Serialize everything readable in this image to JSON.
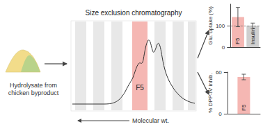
{
  "hydrolysate": {
    "label": "Hydrolysate from chicken byproduct"
  },
  "chromatography": {
    "title": "Size exclusion chromatography",
    "fraction": "F5",
    "axis_label": "Molecular wt."
  },
  "chart_data": [
    {
      "type": "bar",
      "y_label": "Glu. uptake (%)",
      "categories": [
        "F5",
        "Insulin"
      ],
      "values": [
        140,
        100
      ],
      "errors": [
        45,
        12
      ],
      "colors": [
        "#f5b7b3",
        "#cfcfcf"
      ],
      "ylim": [
        0,
        200
      ],
      "yticks": [
        0,
        100
      ],
      "reference_line": 100
    },
    {
      "type": "bar",
      "y_label": "% DPP-IV inhib.",
      "categories": [
        "F5"
      ],
      "values": [
        53
      ],
      "errors": [
        4
      ],
      "colors": [
        "#f5b7b3"
      ],
      "ylim": [
        0,
        60
      ],
      "yticks": [
        0,
        60
      ]
    }
  ]
}
